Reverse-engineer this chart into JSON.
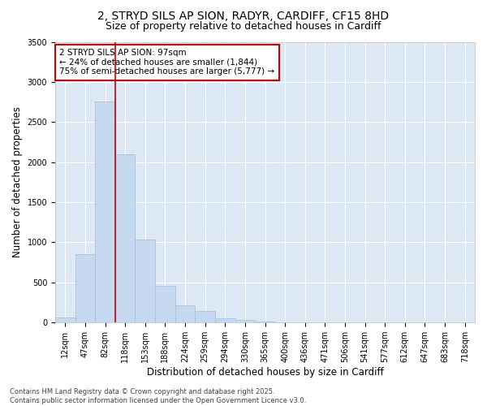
{
  "title_line1": "2, STRYD SILS AP SION, RADYR, CARDIFF, CF15 8HD",
  "title_line2": "Size of property relative to detached houses in Cardiff",
  "xlabel": "Distribution of detached houses by size in Cardiff",
  "ylabel": "Number of detached properties",
  "bar_color": "#c6d9f0",
  "bar_edge_color": "#a0bedd",
  "background_color": "#dce9f5",
  "grid_color": "#ffffff",
  "fig_bg_color": "#ffffff",
  "categories": [
    "12sqm",
    "47sqm",
    "82sqm",
    "118sqm",
    "153sqm",
    "188sqm",
    "224sqm",
    "259sqm",
    "294sqm",
    "330sqm",
    "365sqm",
    "400sqm",
    "436sqm",
    "471sqm",
    "506sqm",
    "541sqm",
    "577sqm",
    "612sqm",
    "647sqm",
    "683sqm",
    "718sqm"
  ],
  "values": [
    60,
    850,
    2760,
    2100,
    1030,
    460,
    210,
    145,
    55,
    30,
    15,
    5,
    2,
    1,
    0,
    0,
    0,
    0,
    0,
    0,
    0
  ],
  "vline_x": 2.5,
  "vline_color": "#cc0000",
  "annotation_text": "2 STRYD SILS AP SION: 97sqm\n← 24% of detached houses are smaller (1,844)\n75% of semi-detached houses are larger (5,777) →",
  "annotation_box_color": "#ffffff",
  "annotation_box_edge": "#cc0000",
  "ylim": [
    0,
    3500
  ],
  "yticks": [
    0,
    500,
    1000,
    1500,
    2000,
    2500,
    3000,
    3500
  ],
  "footnote": "Contains HM Land Registry data © Crown copyright and database right 2025.\nContains public sector information licensed under the Open Government Licence v3.0.",
  "title_fontsize": 10,
  "subtitle_fontsize": 9,
  "axis_label_fontsize": 8.5,
  "tick_fontsize": 7,
  "annotation_fontsize": 7.5,
  "footnote_fontsize": 6
}
